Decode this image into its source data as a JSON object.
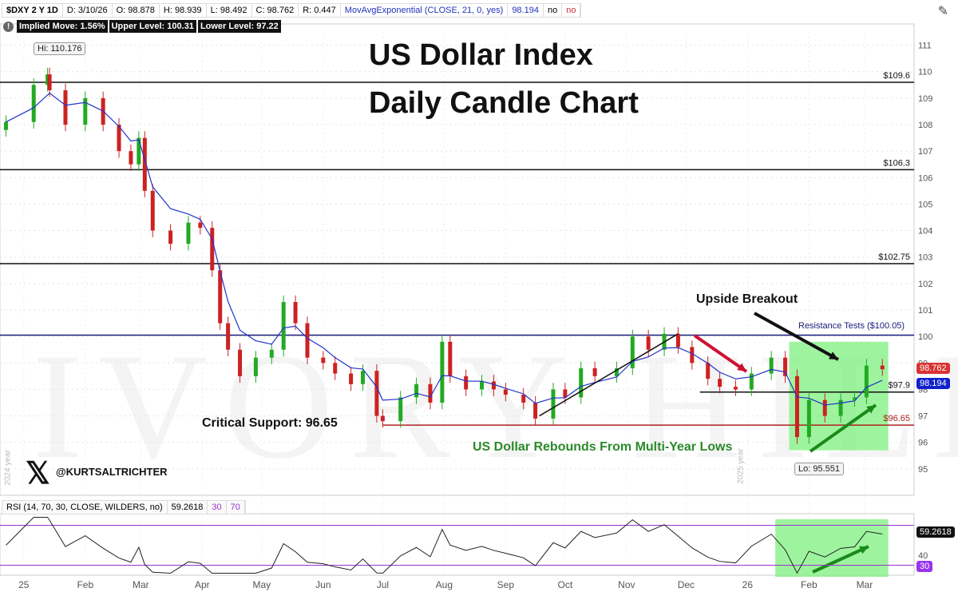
{
  "header": {
    "symbol": "$DXY 2 Y 1D",
    "date": "D: 3/10/26",
    "open": "O: 98.878",
    "high": "H: 98.939",
    "low": "L: 98.492",
    "close": "C: 98.762",
    "range": "R: 0.447",
    "ma_label": "MovAvgExponential (CLOSE, 21, 0, yes)",
    "ma_value": "98.194",
    "no1": "no",
    "no2": "no"
  },
  "implied": {
    "move": "Implied Move: 1.56%",
    "upper": "Upper Level: 100.31",
    "lower": "Lower Level: 97.22"
  },
  "title_line1": "US Dollar Index",
  "title_line2": "Daily Candle Chart",
  "watermark": "IVORY HILL",
  "handle": "@KURTSALTRICHTER",
  "annotations": {
    "breakout": "Upside Breakout",
    "support": "Critical Support: 96.65",
    "rebound": "US Dollar Rebounds From Multi-Year Lows",
    "resistance": "Resistance Tests ($100.05)",
    "hi": "Hi: 110.176",
    "lo": "Lo: 95.551",
    "year2024": "2024 year",
    "year2025": "2025 year"
  },
  "price_tags": {
    "last": "98.762",
    "ema": "98.194",
    "rsi": "59.2618",
    "rsi30": "30"
  },
  "rsi_header": {
    "label": "RSI (14, 70, 30, CLOSE, WILDERS, no)",
    "value": "59.2618",
    "low": "30",
    "high": "70"
  },
  "colors": {
    "up": "#22aa22",
    "down": "#cc2222",
    "ema": "#2233cc",
    "resistance": "#1a1a7a",
    "support": "#b02020",
    "highlight": "#7ef07e",
    "rsi_bounds": "#9933cc"
  },
  "chart_data": {
    "type": "candlestick",
    "ylim": [
      94,
      111.5
    ],
    "yticks": [
      95,
      96,
      97,
      98,
      99,
      100,
      101,
      102,
      103,
      104,
      105,
      106,
      107,
      108,
      109,
      110,
      111
    ],
    "xticks": [
      {
        "label": "25",
        "date": "2025-01-01"
      },
      {
        "label": "Feb",
        "date": "2025-02-01"
      },
      {
        "label": "Mar",
        "date": "2025-03-01"
      },
      {
        "label": "Apr",
        "date": "2025-04-01"
      },
      {
        "label": "May",
        "date": "2025-05-01"
      },
      {
        "label": "Jun",
        "date": "2025-06-01"
      },
      {
        "label": "Jul",
        "date": "2025-07-01"
      },
      {
        "label": "Aug",
        "date": "2025-08-01"
      },
      {
        "label": "Sep",
        "date": "2025-09-01"
      },
      {
        "label": "Oct",
        "date": "2025-10-01"
      },
      {
        "label": "Nov",
        "date": "2025-11-01"
      },
      {
        "label": "Dec",
        "date": "2025-12-01"
      },
      {
        "label": "26",
        "date": "2026-01-01"
      },
      {
        "label": "Feb",
        "date": "2026-02-01"
      },
      {
        "label": "Mar",
        "date": "2026-03-01"
      }
    ],
    "xlim": [
      "2024-12-20",
      "2026-03-26"
    ],
    "dates": [
      "2024-12-23",
      "2025-01-06",
      "2025-01-13",
      "2025-01-14",
      "2025-01-22",
      "2025-02-01",
      "2025-02-10",
      "2025-02-18",
      "2025-02-24",
      "2025-02-28",
      "2025-03-03",
      "2025-03-07",
      "2025-03-16",
      "2025-03-25",
      "2025-03-31",
      "2025-04-06",
      "2025-04-10",
      "2025-04-14",
      "2025-04-20",
      "2025-04-28",
      "2025-05-06",
      "2025-05-12",
      "2025-05-18",
      "2025-05-24",
      "2025-06-01",
      "2025-06-07",
      "2025-06-15",
      "2025-06-21",
      "2025-06-28",
      "2025-07-01",
      "2025-07-10",
      "2025-07-18",
      "2025-07-25",
      "2025-07-31",
      "2025-08-04",
      "2025-08-12",
      "2025-08-20",
      "2025-08-26",
      "2025-09-01",
      "2025-09-10",
      "2025-09-16",
      "2025-09-25",
      "2025-10-01",
      "2025-10-09",
      "2025-10-16",
      "2025-10-27",
      "2025-11-04",
      "2025-11-12",
      "2025-11-20",
      "2025-11-27",
      "2025-12-04",
      "2025-12-12",
      "2025-12-18",
      "2025-12-26",
      "2026-01-03",
      "2026-01-13",
      "2026-01-20",
      "2026-01-26",
      "2026-02-01",
      "2026-02-09",
      "2026-02-17",
      "2026-02-24",
      "2026-03-02",
      "2026-03-10"
    ],
    "close": [
      108.1,
      109.5,
      109.9,
      109.3,
      108.0,
      109.0,
      108.0,
      107.0,
      106.5,
      107.5,
      105.5,
      104.0,
      103.5,
      104.3,
      104.1,
      102.5,
      100.5,
      99.5,
      98.5,
      99.2,
      99.5,
      101.3,
      100.5,
      99.2,
      99.0,
      98.6,
      98.2,
      98.7,
      97.0,
      96.8,
      97.7,
      98.2,
      97.5,
      99.8,
      98.5,
      98.0,
      98.3,
      98.0,
      97.8,
      97.5,
      96.9,
      98.0,
      97.7,
      98.8,
      98.5,
      98.8,
      100.0,
      99.5,
      100.1,
      99.6,
      99.0,
      98.4,
      98.1,
      98.0,
      98.6,
      99.2,
      98.5,
      96.2,
      97.6,
      97.0,
      97.6,
      97.7,
      98.9,
      98.762
    ],
    "levels": [
      {
        "value": 109.6,
        "label": "$109.6"
      },
      {
        "value": 106.3,
        "label": "$106.3"
      },
      {
        "value": 102.75,
        "label": "$102.75"
      },
      {
        "value": 100.05,
        "label": ""
      },
      {
        "value": 97.9,
        "label": "$97.9"
      },
      {
        "value": 96.65,
        "label": "$96.65"
      }
    ],
    "hi": 110.176,
    "lo": 95.551,
    "ema_period": 21,
    "rsi": {
      "period": 14,
      "ylim": [
        20,
        80
      ],
      "bounds": [
        30,
        70
      ],
      "yticks": [
        40
      ]
    }
  }
}
